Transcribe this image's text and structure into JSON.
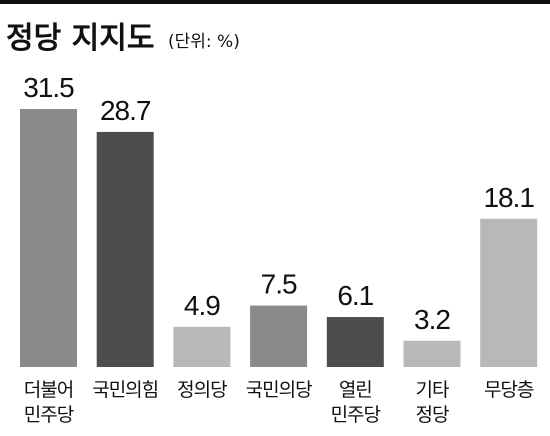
{
  "chart_data": {
    "type": "bar",
    "title": "정당 지지도",
    "subtitle": "(단위: %)",
    "categories": [
      "더불어\n민주당",
      "국민의힘",
      "정의당",
      "국민의당",
      "열린\n민주당",
      "기타\n정당",
      "무당층"
    ],
    "values": [
      31.5,
      28.7,
      4.9,
      7.5,
      6.1,
      3.2,
      18.1
    ],
    "colors": [
      "#8a8a8a",
      "#4d4d4d",
      "#b8b8b8",
      "#8a8a8a",
      "#4d4d4d",
      "#b8b8b8",
      "#b8b8b8"
    ]
  }
}
